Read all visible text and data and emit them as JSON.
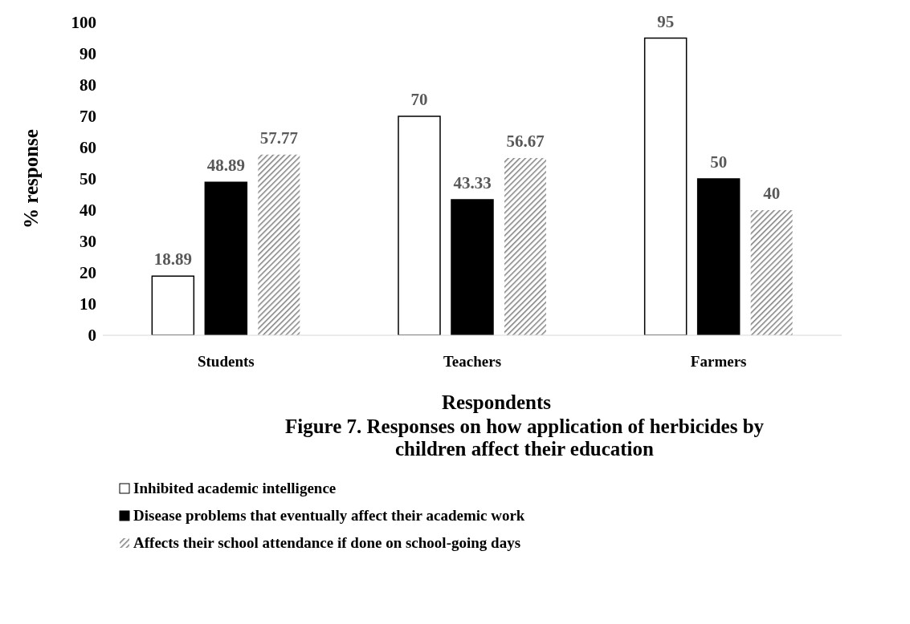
{
  "chart_data": {
    "type": "bar",
    "title": "Figure 7. Responses on how application of herbicides by children affect their education",
    "xlabel": "Respondents",
    "ylabel": "% response",
    "categories": [
      "Students",
      "Teachers",
      "Farmers"
    ],
    "series": [
      {
        "name": "Inhibited academic intelligence",
        "color": "#ffffff",
        "values": [
          18.89,
          70,
          95
        ]
      },
      {
        "name": "Disease problems that eventually affect their academic work",
        "color": "#000000",
        "values": [
          48.89,
          43.33,
          50
        ]
      },
      {
        "name": "Affects their school attendance if done on school-going days",
        "color": "#7f7f7f",
        "values": [
          57.77,
          56.67,
          40
        ]
      }
    ],
    "ylim": [
      0,
      100
    ],
    "yticks": [
      0,
      10,
      20,
      30,
      40,
      50,
      60,
      70,
      80,
      90,
      100
    ],
    "grid": false,
    "legend": "bottom",
    "data_labels": true
  }
}
